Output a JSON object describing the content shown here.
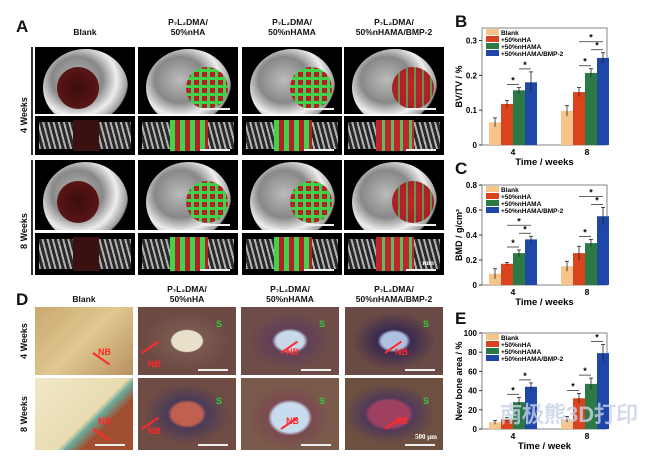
{
  "panels": {
    "A": "A",
    "B": "B",
    "C": "C",
    "D": "D",
    "E": "E"
  },
  "groups": [
    {
      "line1": "Blank",
      "line2": ""
    },
    {
      "line1": "P₇L₂DMA/",
      "line2": "50%nHA"
    },
    {
      "line1": "P₇L₂DMA/",
      "line2": "50%nHAMA"
    },
    {
      "line1": "P₇L₂DMA/",
      "line2": "50%nHAMA/BMP-2"
    }
  ],
  "rows": [
    "4 Weeks",
    "8 Weeks"
  ],
  "ct_scale_label": "mm",
  "histology": {
    "nb_label": "NB",
    "s_label": "S",
    "scale_label": "500 μm"
  },
  "watermark": "南极熊3D打印",
  "colors": {
    "blank": "#f7c48a",
    "nHA": "#d9441f",
    "nHAMA": "#2b7a45",
    "nHAMA_BMP2": "#1e47a8"
  },
  "chart_data": [
    {
      "id": "B",
      "type": "bar",
      "title": "",
      "xlabel": "Time / weeks",
      "ylabel": "BV/TV / %",
      "categories": [
        "4",
        "8"
      ],
      "ylim": [
        0,
        0.336
      ],
      "yticks": [
        "0",
        "0.1",
        "0.2",
        "0.3"
      ],
      "ytick_values": [
        0,
        0.1,
        0.2,
        0.3
      ],
      "legend_position": "top-left",
      "series": [
        {
          "name": "Blank",
          "values": [
            0.065,
            0.098
          ],
          "errors": [
            0.013,
            0.015
          ]
        },
        {
          "name": "+50%nHA",
          "values": [
            0.118,
            0.152
          ],
          "errors": [
            0.01,
            0.013
          ]
        },
        {
          "name": "+50%nHAMA",
          "values": [
            0.157,
            0.207
          ],
          "errors": [
            0.008,
            0.012
          ]
        },
        {
          "name": "+50%nHAMA/BMP-2",
          "values": [
            0.18,
            0.25
          ],
          "errors": [
            0.03,
            0.015
          ]
        }
      ],
      "significance": [
        {
          "cat": 0,
          "a": 2,
          "b": 3,
          "text": "*"
        },
        {
          "cat": 0,
          "a": 1,
          "b": 2,
          "text": "*"
        },
        {
          "cat": 1,
          "a": 1,
          "b": 2,
          "text": "*"
        },
        {
          "cat": 1,
          "a": 2,
          "b": 3,
          "text": "*"
        },
        {
          "cat": 1,
          "a": 1,
          "b": 3,
          "text": "*"
        }
      ]
    },
    {
      "id": "C",
      "type": "bar",
      "title": "",
      "xlabel": "Time / weeks",
      "ylabel": "BMD / g/cm²",
      "categories": [
        "4",
        "8"
      ],
      "ylim": [
        0,
        0.8
      ],
      "yticks": [
        "0",
        "0.2",
        "0.4",
        "0.6",
        "0.8"
      ],
      "ytick_values": [
        0,
        0.2,
        0.4,
        0.6,
        0.8
      ],
      "legend_position": "top-left",
      "series": [
        {
          "name": "Blank",
          "values": [
            0.09,
            0.15
          ],
          "errors": [
            0.04,
            0.04
          ]
        },
        {
          "name": "+50%nHA",
          "values": [
            0.17,
            0.255
          ],
          "errors": [
            0.01,
            0.055
          ]
        },
        {
          "name": "+50%nHAMA",
          "values": [
            0.255,
            0.335
          ],
          "errors": [
            0.025,
            0.03
          ]
        },
        {
          "name": "+50%nHAMA/BMP-2",
          "values": [
            0.365,
            0.55
          ],
          "errors": [
            0.025,
            0.07
          ]
        }
      ],
      "significance": [
        {
          "cat": 0,
          "a": 1,
          "b": 2,
          "text": "*"
        },
        {
          "cat": 0,
          "a": 2,
          "b": 3,
          "text": "*"
        },
        {
          "cat": 0,
          "a": 1,
          "b": 3,
          "text": "*"
        },
        {
          "cat": 1,
          "a": 1,
          "b": 2,
          "text": "*"
        },
        {
          "cat": 1,
          "a": 2,
          "b": 3,
          "text": "*"
        },
        {
          "cat": 1,
          "a": 1,
          "b": 3,
          "text": "*"
        }
      ]
    },
    {
      "id": "E",
      "type": "bar",
      "title": "",
      "xlabel": "Time / week",
      "ylabel": "New bone area / %",
      "categories": [
        "4",
        "8"
      ],
      "ylim": [
        0,
        100
      ],
      "yticks": [
        "0",
        "20",
        "40",
        "60",
        "80",
        "100"
      ],
      "ytick_values": [
        0,
        20,
        40,
        60,
        80,
        100
      ],
      "legend_position": "top-left",
      "series": [
        {
          "name": "Blank",
          "values": [
            7,
            10
          ],
          "errors": [
            2,
            3
          ]
        },
        {
          "name": "+50%nHA",
          "values": [
            10,
            32
          ],
          "errors": [
            2,
            5
          ]
        },
        {
          "name": "+50%nHAMA",
          "values": [
            28,
            47
          ],
          "errors": [
            5,
            6
          ]
        },
        {
          "name": "+50%nHAMA/BMP-2",
          "values": [
            44,
            79
          ],
          "errors": [
            4,
            9
          ]
        }
      ],
      "significance": [
        {
          "cat": 0,
          "a": 1,
          "b": 2,
          "text": "*"
        },
        {
          "cat": 0,
          "a": 2,
          "b": 3,
          "text": "*"
        },
        {
          "cat": 1,
          "a": 0,
          "b": 1,
          "text": "*"
        },
        {
          "cat": 1,
          "a": 1,
          "b": 2,
          "text": "*"
        },
        {
          "cat": 1,
          "a": 2,
          "b": 3,
          "text": "*"
        }
      ]
    }
  ]
}
